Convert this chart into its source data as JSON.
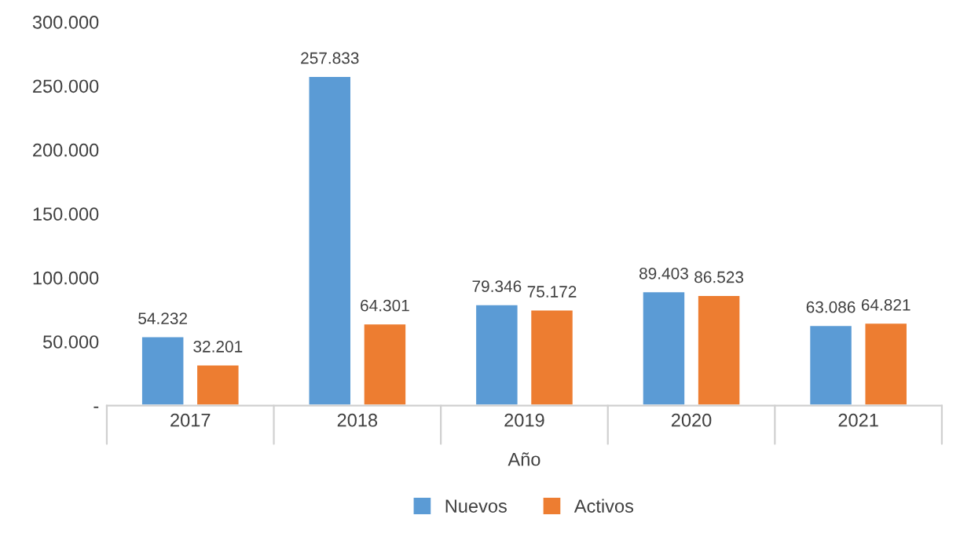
{
  "chart_data": {
    "type": "bar",
    "xlabel": "Año",
    "categories": [
      "2017",
      "2018",
      "2019",
      "2020",
      "2021"
    ],
    "series": [
      {
        "name": "Nuevos",
        "color": "#5b9bd5",
        "values": [
          54232,
          257833,
          79346,
          89403,
          63086
        ],
        "value_labels": [
          "54.232",
          "257.833",
          "79.346",
          "89.403",
          "63.086"
        ]
      },
      {
        "name": "Activos",
        "color": "#ed7d31",
        "values": [
          32201,
          64301,
          75172,
          86523,
          64821
        ],
        "value_labels": [
          "32.201",
          "64.301",
          "75.172",
          "86.523",
          "64.821"
        ]
      }
    ],
    "ylim": [
      0,
      300000
    ],
    "yticks": [
      {
        "value": 0,
        "label": "-"
      },
      {
        "value": 50000,
        "label": "50.000"
      },
      {
        "value": 100000,
        "label": "100.000"
      },
      {
        "value": 150000,
        "label": "150.000"
      },
      {
        "value": 200000,
        "label": "200.000"
      },
      {
        "value": 250000,
        "label": "250.000"
      },
      {
        "value": 300000,
        "label": "300.000"
      }
    ],
    "grid": false,
    "legend": "bottom"
  }
}
